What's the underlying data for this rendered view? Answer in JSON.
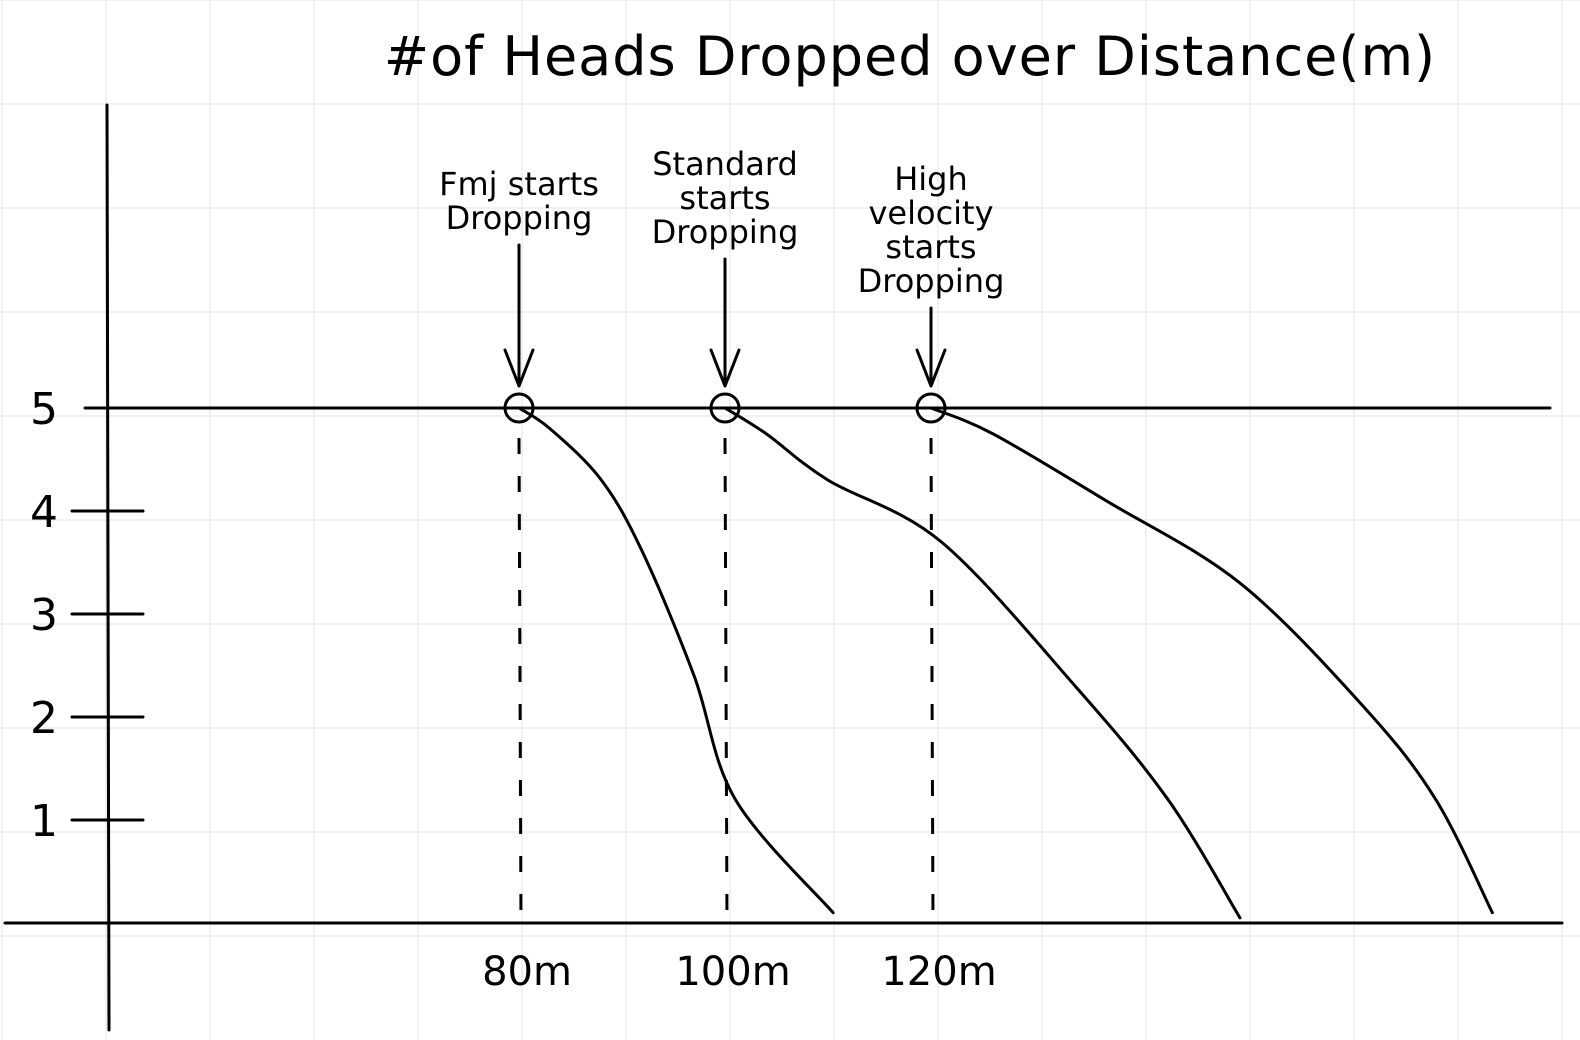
{
  "chart_data": {
    "type": "line",
    "title": "#of Heads Dropped over Distance(m)",
    "xlabel": "",
    "ylabel": "",
    "x_ticks": [
      "80m",
      "100m",
      "120m"
    ],
    "x_tick_values": [
      80,
      100,
      120
    ],
    "y_ticks": [
      "1",
      "2",
      "3",
      "4",
      "5"
    ],
    "y_tick_values": [
      1,
      2,
      3,
      4,
      5
    ],
    "xlim": [
      40,
      180
    ],
    "ylim": [
      0,
      5.5
    ],
    "grid": true,
    "reference_lines": [
      {
        "axis": "y",
        "value": 5
      }
    ],
    "series": [
      {
        "start_x": 80,
        "points": [
          [
            80,
            5
          ],
          [
            83,
            4.8
          ],
          [
            88,
            4.3
          ],
          [
            92,
            3.6
          ],
          [
            97,
            2.4
          ],
          [
            101,
            1.2
          ],
          [
            110.5,
            0.1
          ]
        ]
      },
      {
        "start_x": 100,
        "points": [
          [
            100,
            5
          ],
          [
            104,
            4.75
          ],
          [
            110,
            4.3
          ],
          [
            121,
            3.7
          ],
          [
            134,
            2.3
          ],
          [
            143,
            1.2
          ],
          [
            150,
            0.05
          ]
        ]
      },
      {
        "start_x": 120,
        "points": [
          [
            120,
            5
          ],
          [
            126,
            4.75
          ],
          [
            137,
            4.1
          ],
          [
            150,
            3.3
          ],
          [
            162,
            2.1
          ],
          [
            169,
            1.2
          ],
          [
            174.5,
            0.1
          ]
        ]
      }
    ],
    "annotations": [
      {
        "x": 80,
        "y": 5,
        "lines": [
          "Fmj starts",
          "Dropping"
        ]
      },
      {
        "x": 100,
        "y": 5,
        "lines": [
          "Standard",
          "starts",
          "Dropping"
        ]
      },
      {
        "x": 120,
        "y": 5,
        "lines": [
          "High",
          "velocity",
          "starts",
          "Dropping"
        ]
      }
    ]
  }
}
